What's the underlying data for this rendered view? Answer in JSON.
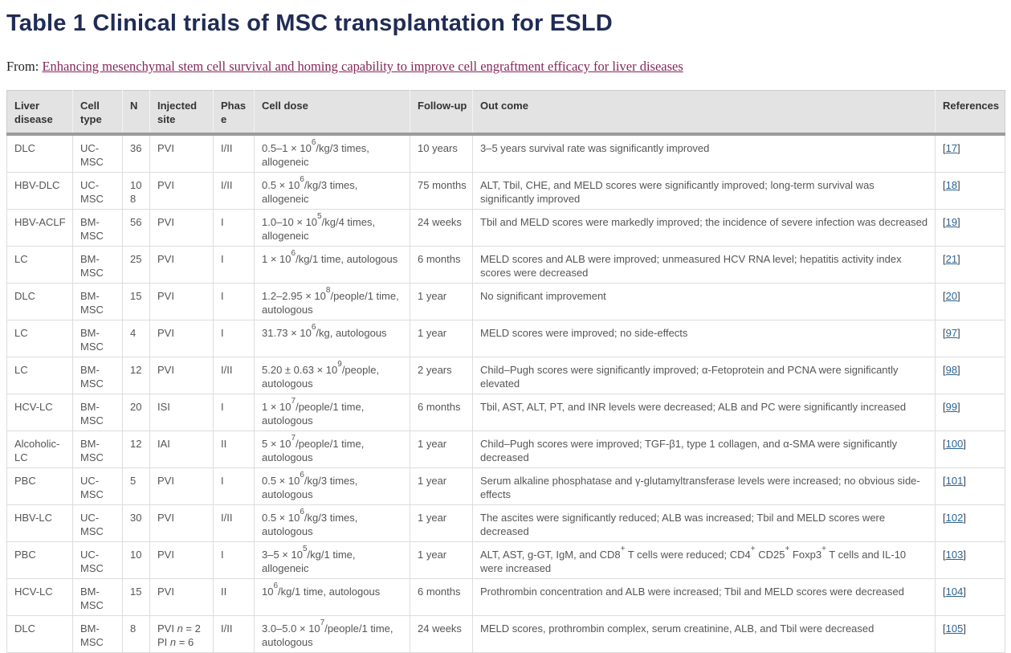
{
  "page": {
    "title": "Table 1 Clinical trials of MSC transplantation for ESLD",
    "from_label": "From: ",
    "from_link": "Enhancing mesenchymal stem cell survival and homing capability to improve cell engraftment efficacy for liver diseases"
  },
  "colors": {
    "title_navy": "#202c55",
    "source_link": "#84275a",
    "reference_link": "#2a6496",
    "header_bg": "#e3e3e3",
    "header_rule": "#9b9b9b",
    "grid_line": "#dcdcdc",
    "body_text": "#555555"
  },
  "table": {
    "columns": [
      "Liver disease",
      "Cell type",
      "N",
      "Injected site",
      "Phase",
      "Cell dose",
      "Follow-up",
      "Out come",
      "References"
    ],
    "rows": [
      {
        "liver_disease": "DLC",
        "cell_type": "UC-MSC",
        "n": "36",
        "injected_site_html": "PVI",
        "phase": "I/II",
        "cell_dose_html": "0.5–1 × 10<sup>6</sup>/kg/3 times, allogeneic",
        "follow_up": "10 years",
        "outcome_html": "3–5 years survival rate was significantly improved",
        "reference": "17"
      },
      {
        "liver_disease": "HBV-DLC",
        "cell_type": "UC-MSC",
        "n": "108",
        "injected_site_html": "PVI",
        "phase": "I/II",
        "cell_dose_html": "0.5 × 10<sup>6</sup>/kg/3 times, allogeneic",
        "follow_up": "75 months",
        "outcome_html": "ALT, Tbil, CHE, and MELD scores were significantly improved; long-term survival was significantly improved",
        "reference": "18"
      },
      {
        "liver_disease": "HBV-ACLF",
        "cell_type": "BM-MSC",
        "n": "56",
        "injected_site_html": "PVI",
        "phase": "I",
        "cell_dose_html": "1.0–10 × 10<sup>5</sup>/kg/4 times, allogeneic",
        "follow_up": "24 weeks",
        "outcome_html": "Tbil and MELD scores were markedly improved; the incidence of severe infection was decreased",
        "reference": "19"
      },
      {
        "liver_disease": "LC",
        "cell_type": "BM-MSC",
        "n": "25",
        "injected_site_html": "PVI",
        "phase": "I",
        "cell_dose_html": "1 × 10<sup>6</sup>/kg/1 time, autologous",
        "follow_up": "6 months",
        "outcome_html": "MELD scores and ALB were improved; unmeasured HCV RNA level; hepatitis activity index scores were decreased",
        "reference": "21"
      },
      {
        "liver_disease": "DLC",
        "cell_type": "BM-MSC",
        "n": "15",
        "injected_site_html": "PVI",
        "phase": "I",
        "cell_dose_html": "1.2–2.95 × 10<sup>8</sup>/people/1 time, autologous",
        "follow_up": "1 year",
        "outcome_html": "No significant improvement",
        "reference": "20"
      },
      {
        "liver_disease": "LC",
        "cell_type": "BM-MSC",
        "n": "4",
        "injected_site_html": "PVI",
        "phase": "I",
        "cell_dose_html": "31.73 × 10<sup>6</sup>/kg, autologous",
        "follow_up": "1 year",
        "outcome_html": "MELD scores were improved; no side-effects",
        "reference": "97"
      },
      {
        "liver_disease": "LC",
        "cell_type": "BM-MSC",
        "n": "12",
        "injected_site_html": "PVI",
        "phase": "I/II",
        "cell_dose_html": "5.20 ± 0.63 × 10<sup>9</sup>/people, autologous",
        "follow_up": "2 years",
        "outcome_html": "Child–Pugh scores were significantly improved; α-Fetoprotein and PCNA were significantly elevated",
        "reference": "98"
      },
      {
        "liver_disease": "HCV-LC",
        "cell_type": "BM-MSC",
        "n": "20",
        "injected_site_html": "ISI",
        "phase": "I",
        "cell_dose_html": "1 × 10<sup>7</sup>/people/1 time, autologous",
        "follow_up": "6 months",
        "outcome_html": "Tbil, AST, ALT, PT, and INR levels were decreased; ALB and PC were significantly increased",
        "reference": "99"
      },
      {
        "liver_disease": "Alcoholic-LC",
        "cell_type": "BM-MSC",
        "n": "12",
        "injected_site_html": "IAI",
        "phase": "II",
        "cell_dose_html": "5 × 10<sup>7</sup>/people/1 time, autologous",
        "follow_up": "1 year",
        "outcome_html": "Child–Pugh scores were improved; TGF-β1, type 1 collagen, and α-SMA were significantly decreased",
        "reference": "100"
      },
      {
        "liver_disease": "PBC",
        "cell_type": "UC-MSC",
        "n": "5",
        "injected_site_html": "PVI",
        "phase": "I",
        "cell_dose_html": "0.5 × 10<sup>6</sup>/kg/3 times, autologous",
        "follow_up": "1 year",
        "outcome_html": "Serum alkaline phosphatase and γ-glutamyltransferase levels were increased; no obvious side-effects",
        "reference": "101"
      },
      {
        "liver_disease": "HBV-LC",
        "cell_type": "UC-MSC",
        "n": "30",
        "injected_site_html": "PVI",
        "phase": "I/II",
        "cell_dose_html": "0.5 × 10<sup>6</sup>/kg/3 times, autologous",
        "follow_up": "1 year",
        "outcome_html": "The ascites were significantly reduced; ALB was increased; Tbil and MELD scores were decreased",
        "reference": "102"
      },
      {
        "liver_disease": "PBC",
        "cell_type": "UC-MSC",
        "n": "10",
        "injected_site_html": "PVI",
        "phase": "I",
        "cell_dose_html": "3–5 × 10<sup>5</sup>/kg/1 time, allogeneic",
        "follow_up": "1 year",
        "outcome_html": "ALT, AST, g-GT, IgM, and CD8<sup>+</sup> T cells were reduced; CD4<sup>+</sup> CD25<sup>+</sup> Foxp3<sup>+</sup> T cells and IL-10 were increased",
        "reference": "103"
      },
      {
        "liver_disease": "HCV-LC",
        "cell_type": "BM-MSC",
        "n": "15",
        "injected_site_html": "PVI",
        "phase": "II",
        "cell_dose_html": "10<sup>6</sup>/kg/1 time, autologous",
        "follow_up": "6 months",
        "outcome_html": "Prothrombin concentration and ALB were increased; Tbil and MELD scores were decreased",
        "reference": "104"
      },
      {
        "liver_disease": "DLC",
        "cell_type": "BM-MSC",
        "n": "8",
        "injected_site_html": "PVI <i>n</i> = 2<br>PI <i>n</i> = 6",
        "phase": "I/II",
        "cell_dose_html": "3.0–5.0 × 10<sup>7</sup>/people/1 time, autologous",
        "follow_up": "24 weeks",
        "outcome_html": "MELD scores, prothrombin complex, serum creatinine, ALB, and Tbil were decreased",
        "reference": "105"
      }
    ]
  }
}
